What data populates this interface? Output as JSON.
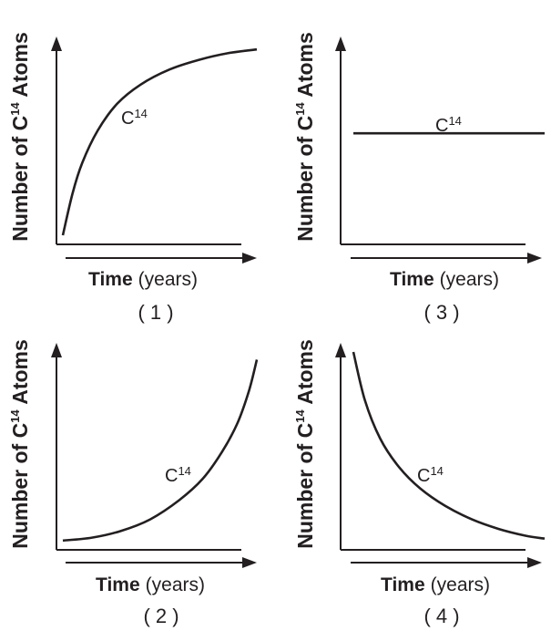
{
  "chart_data": [
    {
      "type": "line",
      "choice": "( 1 )",
      "shape": "increasing-concave",
      "x_axis": {
        "bold": "Time",
        "rest": "(years)"
      },
      "y_axis": {
        "pre": "Number of C",
        "sup": "14",
        "post": " Atoms"
      },
      "curve_label": {
        "main": "C",
        "sup": "14"
      },
      "series": [
        {
          "points": [
            [
              0.0,
              0.0
            ],
            [
              0.05,
              0.22
            ],
            [
              0.1,
              0.38
            ],
            [
              0.18,
              0.55
            ],
            [
              0.28,
              0.69
            ],
            [
              0.4,
              0.79
            ],
            [
              0.55,
              0.87
            ],
            [
              0.7,
              0.92
            ],
            [
              0.85,
              0.955
            ],
            [
              1.0,
              0.975
            ]
          ]
        }
      ],
      "xlim": [
        0,
        1
      ],
      "ylim": [
        0,
        1
      ]
    },
    {
      "type": "line",
      "choice": "( 3 )",
      "shape": "constant",
      "x_axis": {
        "bold": "Time",
        "rest": "(years)"
      },
      "y_axis": {
        "pre": "Number of C",
        "sup": "14",
        "post": " Atoms"
      },
      "curve_label": {
        "main": "C",
        "sup": "14"
      },
      "series": [
        {
          "points": [
            [
              0.0,
              0.535
            ],
            [
              1.0,
              0.535
            ]
          ]
        }
      ],
      "xlim": [
        0,
        1
      ],
      "ylim": [
        0,
        1
      ]
    },
    {
      "type": "line",
      "choice": "( 2 )",
      "shape": "increasing-convex",
      "x_axis": {
        "bold": "Time",
        "rest": "(years)"
      },
      "y_axis": {
        "pre": "Number of C",
        "sup": "14",
        "post": " Atoms"
      },
      "curve_label": {
        "main": "C",
        "sup": "14"
      },
      "series": [
        {
          "points": [
            [
              0.0,
              0.02
            ],
            [
              0.15,
              0.035
            ],
            [
              0.3,
              0.07
            ],
            [
              0.45,
              0.13
            ],
            [
              0.6,
              0.23
            ],
            [
              0.72,
              0.34
            ],
            [
              0.82,
              0.48
            ],
            [
              0.9,
              0.63
            ],
            [
              0.96,
              0.8
            ],
            [
              1.0,
              0.96
            ]
          ]
        }
      ],
      "xlim": [
        0,
        1
      ],
      "ylim": [
        0,
        1
      ]
    },
    {
      "type": "line",
      "choice": "( 4 )",
      "shape": "decreasing-convex",
      "x_axis": {
        "bold": "Time",
        "rest": "(years)"
      },
      "y_axis": {
        "pre": "Number of C",
        "sup": "14",
        "post": " Atoms"
      },
      "curve_label": {
        "main": "C",
        "sup": "14"
      },
      "series": [
        {
          "points": [
            [
              0.0,
              1.0
            ],
            [
              0.06,
              0.75
            ],
            [
              0.14,
              0.55
            ],
            [
              0.24,
              0.4
            ],
            [
              0.35,
              0.29
            ],
            [
              0.48,
              0.2
            ],
            [
              0.62,
              0.13
            ],
            [
              0.76,
              0.08
            ],
            [
              0.9,
              0.045
            ],
            [
              1.0,
              0.03
            ]
          ]
        }
      ],
      "xlim": [
        0,
        1
      ],
      "ylim": [
        0,
        1
      ]
    }
  ]
}
